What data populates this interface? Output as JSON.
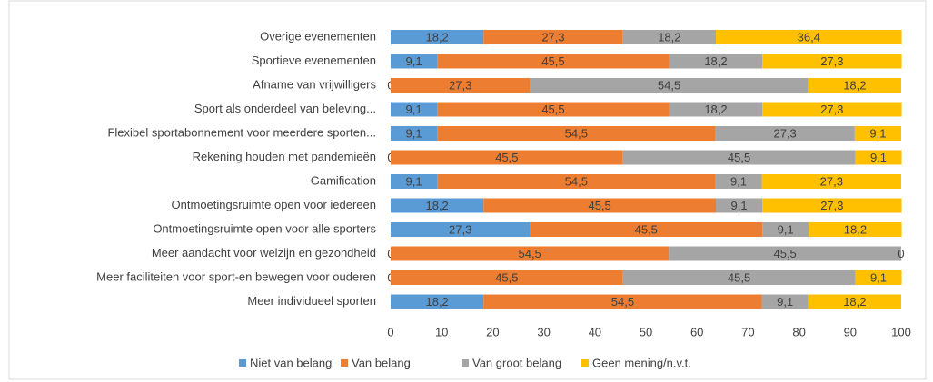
{
  "chart_data": {
    "type": "stacked-bar-horizontal",
    "categories": [
      "Overige evenementen",
      "Sportieve evenementen",
      "Afname van vrijwilligers",
      "Sport als onderdeel van beleving...",
      "Flexibel sportabonnement voor meerdere sporten...",
      "Rekening houden met pandemieën",
      "Gamification",
      "Ontmoetingsruimte open voor iedereen",
      "Ontmoetingsruimte open voor alle sporters",
      "Meer aandacht voor welzijn en gezondheid",
      "Meer faciliteiten voor sport-en bewegen voor ouderen",
      "Meer individueel sporten"
    ],
    "series": [
      {
        "name": "Niet van belang",
        "color": "#5b9bd5",
        "values": [
          18.2,
          9.1,
          0,
          9.1,
          9.1,
          0,
          9.1,
          18.2,
          27.3,
          0,
          0,
          18.2
        ],
        "value_labels": [
          "18,2",
          "9,1",
          "0",
          "9,1",
          "9,1",
          "0",
          "9,1",
          "18,2",
          "27,3",
          "0",
          "0",
          "18,2"
        ]
      },
      {
        "name": "Van belang",
        "color": "#ed7d31",
        "values": [
          27.3,
          45.5,
          27.3,
          45.5,
          54.5,
          45.5,
          54.5,
          45.5,
          45.5,
          54.5,
          45.5,
          54.5
        ],
        "value_labels": [
          "27,3",
          "45,5",
          "27,3",
          "45,5",
          "54,5",
          "45,5",
          "54,5",
          "45,5",
          "45,5",
          "54,5",
          "45,5",
          "54,5"
        ]
      },
      {
        "name": "Van groot belang",
        "color": "#a5a5a5",
        "values": [
          18.2,
          18.2,
          54.5,
          18.2,
          27.3,
          45.5,
          9.1,
          9.1,
          9.1,
          45.5,
          45.5,
          9.1
        ],
        "value_labels": [
          "18,2",
          "18,2",
          "54,5",
          "18,2",
          "27,3",
          "45,5",
          "9,1",
          "9,1",
          "9,1",
          "45,5",
          "45,5",
          "9,1"
        ]
      },
      {
        "name": "Geen mening/n.v.t.",
        "color": "#ffc000",
        "values": [
          36.4,
          27.3,
          18.2,
          27.3,
          9.1,
          9.1,
          27.3,
          27.3,
          18.2,
          0,
          9.1,
          18.2
        ],
        "value_labels": [
          "36,4",
          "27,3",
          "18,2",
          "27,3",
          "9,1",
          "9,1",
          "27,3",
          "27,3",
          "18,2",
          "0",
          "9,1",
          "18,2"
        ]
      }
    ],
    "xlim": [
      0,
      100
    ],
    "xticks": [
      0,
      10,
      20,
      30,
      40,
      50,
      60,
      70,
      80,
      90,
      100
    ],
    "legend": "bottom"
  }
}
